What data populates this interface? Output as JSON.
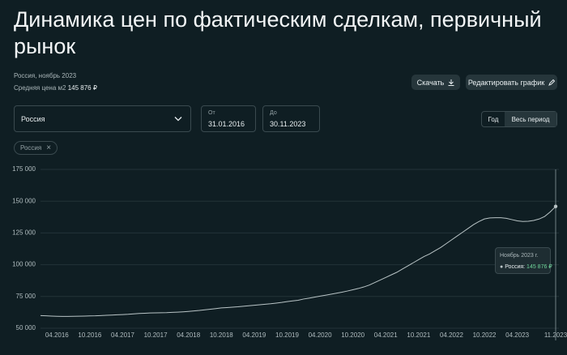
{
  "header": {
    "title": "Динамика цен по фактическим сделкам, первичный рынок",
    "region_date": "Россия, ноябрь 2023",
    "avg_label": "Средняя цена м2",
    "avg_value": "145 876 ₽"
  },
  "buttons": {
    "download": "Скачать",
    "edit": "Редактировать график"
  },
  "filters": {
    "region": "Россия",
    "from_label": "От",
    "from": "31.01.2016",
    "to_label": "До",
    "to": "30.11.2023",
    "period_year": "Год",
    "period_all": "Весь период"
  },
  "tooltip": {
    "title": "Ноябрь 2023 г.",
    "series_label": "Россия:",
    "value_label": "145 876 ₽"
  },
  "chart_data": {
    "type": "line",
    "categories": [
      null,
      null,
      null,
      "04.2016",
      null,
      null,
      null,
      null,
      null,
      "10.2016",
      null,
      null,
      null,
      null,
      null,
      "04.2017",
      null,
      null,
      null,
      null,
      null,
      "10.2017",
      null,
      null,
      null,
      null,
      null,
      "04.2018",
      null,
      null,
      null,
      null,
      null,
      "10.2018",
      null,
      null,
      null,
      null,
      null,
      "04.2019",
      null,
      null,
      null,
      null,
      null,
      "10.2019",
      null,
      null,
      null,
      null,
      null,
      "04.2020",
      null,
      null,
      null,
      null,
      null,
      "10.2020",
      null,
      null,
      null,
      null,
      null,
      "04.2021",
      null,
      null,
      null,
      null,
      null,
      "10.2021",
      null,
      null,
      null,
      null,
      null,
      "04.2022",
      null,
      null,
      null,
      null,
      null,
      "10.2022",
      null,
      null,
      null,
      null,
      null,
      "04.2023",
      null,
      null,
      null,
      null,
      null,
      null,
      "11.2023"
    ],
    "series": [
      {
        "name": "Россия",
        "color": "#b9c4c6",
        "values": [
          60000,
          59800,
          59600,
          59400,
          59300,
          59300,
          59400,
          59500,
          59600,
          59700,
          59800,
          60000,
          60200,
          60400,
          60600,
          60800,
          61000,
          61300,
          61600,
          61800,
          62000,
          62100,
          62200,
          62300,
          62500,
          62700,
          62900,
          63200,
          63600,
          64000,
          64500,
          65000,
          65500,
          66000,
          66300,
          66600,
          66900,
          67300,
          67700,
          68100,
          68500,
          68900,
          69300,
          69800,
          70300,
          71000,
          71500,
          72000,
          73000,
          73700,
          74500,
          75300,
          76000,
          76800,
          77600,
          78400,
          79300,
          80300,
          81300,
          82500,
          84000,
          86000,
          88000,
          90000,
          92000,
          94000,
          96500,
          99000,
          101500,
          104000,
          106500,
          108500,
          111000,
          113500,
          116500,
          119500,
          122500,
          125500,
          128500,
          131500,
          134000,
          136000,
          136800,
          137000,
          137000,
          136500,
          135500,
          134500,
          134000,
          134200,
          134800,
          136000,
          138000,
          141500,
          145876
        ]
      }
    ],
    "ylim": [
      50000,
      175000
    ],
    "yticks": [
      {
        "value": 50000,
        "label": "50 000"
      },
      {
        "value": 75000,
        "label": "75 000"
      },
      {
        "value": 100000,
        "label": "100 000"
      },
      {
        "value": 125000,
        "label": "125 000"
      },
      {
        "value": 150000,
        "label": "150 000"
      },
      {
        "value": 175000,
        "label": "175 000"
      }
    ],
    "grid": true
  }
}
